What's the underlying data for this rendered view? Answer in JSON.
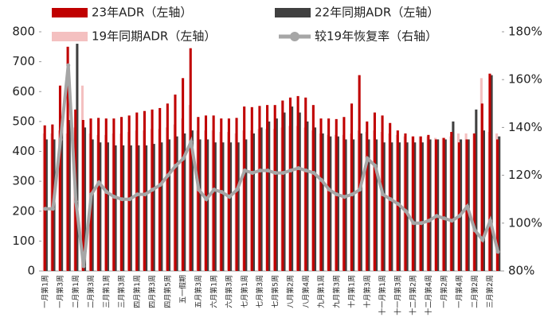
{
  "chart_data": {
    "type": "bar",
    "categories": [
      "一月第1周",
      null,
      "一月第3周",
      null,
      "二月第1周",
      null,
      "二月第3周",
      null,
      "三月第1周",
      null,
      "三月第3周",
      null,
      "四月第1周",
      null,
      "四月第3周",
      null,
      "四月第5周",
      null,
      "五一假期",
      null,
      "五月第3周",
      null,
      "六月第1周",
      null,
      "六月第3周",
      null,
      "七月第1周",
      null,
      "七月第3周",
      null,
      "七月第5周",
      null,
      "八月第2周",
      null,
      "八月第4周",
      null,
      "九月第1周",
      null,
      "九月第3周",
      null,
      "十月第1周",
      null,
      "十月第3周",
      null,
      "十一月第1周",
      null,
      "十一月第3周",
      null,
      "十二月第2周",
      null,
      "十二月第4周",
      null,
      "一月第2周",
      null,
      "一月第4周",
      null,
      "二月第2周",
      null,
      "三月第2周",
      null
    ],
    "series": [
      {
        "name": "23年ADR（左轴）",
        "color": "#c00000",
        "values": [
          487,
          490,
          620,
          750,
          540,
          505,
          510,
          512,
          510,
          510,
          515,
          520,
          530,
          535,
          540,
          545,
          560,
          590,
          645,
          745,
          515,
          520,
          520,
          510,
          510,
          512,
          550,
          548,
          552,
          555,
          555,
          570,
          580,
          585,
          580,
          555,
          510,
          510,
          508,
          515,
          560,
          655,
          500,
          530,
          520,
          495,
          470,
          460,
          450,
          450,
          455,
          440,
          445,
          465,
          430,
          440,
          460,
          560,
          660,
          440
        ]
      },
      {
        "name": "22年同期ADR（左轴）",
        "color": "#404040",
        "values": [
          440,
          440,
          500,
          505,
          760,
          480,
          440,
          430,
          430,
          420,
          420,
          420,
          420,
          420,
          425,
          430,
          440,
          450,
          460,
          470,
          440,
          440,
          430,
          430,
          430,
          430,
          440,
          460,
          480,
          500,
          510,
          530,
          550,
          530,
          500,
          480,
          460,
          450,
          450,
          440,
          440,
          460,
          440,
          440,
          430,
          430,
          430,
          430,
          430,
          430,
          440,
          440,
          440,
          500,
          440,
          440,
          540,
          470,
          655,
          450
        ]
      },
      {
        "name": "19年同期ADR（左轴）",
        "color": "#f4c0c0",
        "values": [
          460,
          460,
          470,
          460,
          480,
          620,
          460,
          455,
          455,
          460,
          460,
          465,
          470,
          470,
          475,
          475,
          480,
          490,
          510,
          555,
          470,
          470,
          470,
          465,
          465,
          460,
          470,
          470,
          475,
          475,
          475,
          480,
          485,
          485,
          480,
          470,
          460,
          455,
          455,
          455,
          460,
          470,
          465,
          470,
          465,
          460,
          455,
          450,
          450,
          450,
          450,
          445,
          445,
          450,
          460,
          460,
          460,
          645,
          465,
          460
        ]
      },
      {
        "name": "较19年恢复率（右轴）",
        "color": "#a6a6a6",
        "axis": "y2",
        "values": [
          106,
          106,
          135,
          166,
          109,
          82,
          112,
          117,
          113,
          111,
          110,
          110,
          112,
          112,
          114,
          116,
          120,
          124,
          127,
          134,
          114,
          110,
          114,
          113,
          111,
          114,
          122,
          121,
          122,
          122,
          121,
          121,
          122,
          123,
          122,
          121,
          118,
          114,
          112,
          111,
          112,
          114,
          127,
          124,
          112,
          110,
          108,
          105,
          100,
          100,
          101,
          103,
          102,
          101,
          103,
          107,
          97,
          93,
          101,
          88
        ]
      }
    ],
    "ylim": [
      0,
      800
    ],
    "yticks": [
      0,
      100,
      200,
      300,
      400,
      500,
      600,
      700,
      800
    ],
    "y2lim": [
      80,
      180
    ],
    "y2ticks": [
      {
        "value": 80,
        "label": "80%"
      },
      {
        "value": 100,
        "label": "100%"
      },
      {
        "value": 120,
        "label": "120%"
      },
      {
        "value": 140,
        "label": "140%"
      },
      {
        "value": 160,
        "label": "160%"
      },
      {
        "value": 180,
        "label": "180%"
      }
    ]
  }
}
